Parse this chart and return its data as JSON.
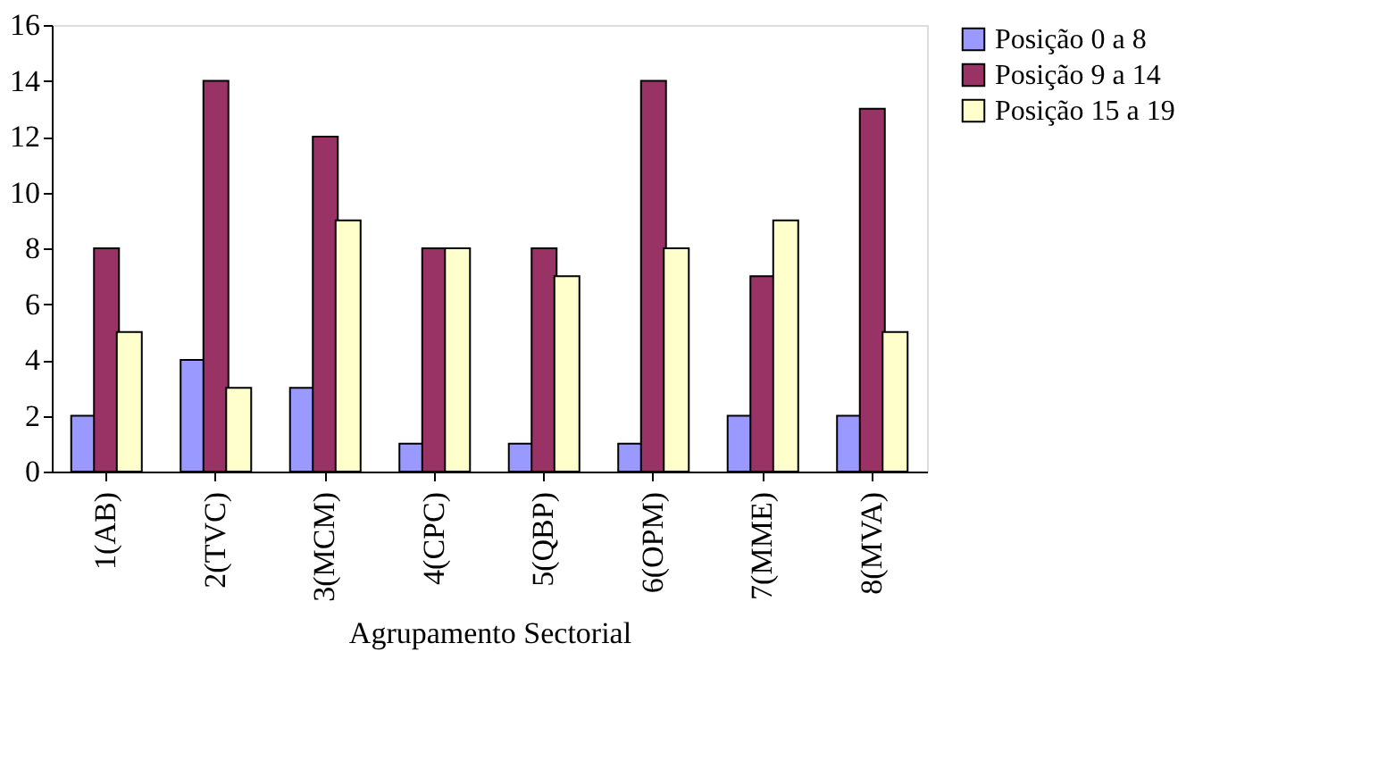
{
  "chart_data": {
    "type": "bar",
    "xlabel": "Agrupamento Sectorial",
    "categories": [
      "1(AB)",
      "2(TVC)",
      "3(MCM)",
      "4(CPC)",
      "5(QBP)",
      "6(OPM)",
      "7(MME)",
      "8(MVA)"
    ],
    "series": [
      {
        "name": "Posição 0 a 8",
        "color": "#9999ff",
        "values": [
          2,
          4,
          3,
          1,
          1,
          1,
          2,
          2
        ]
      },
      {
        "name": "Posição 9 a 14",
        "color": "#993366",
        "values": [
          8,
          14,
          12,
          8,
          8,
          14,
          7,
          13
        ]
      },
      {
        "name": "Posição 15 a 19",
        "color": "#ffffcc",
        "values": [
          5,
          3,
          9,
          8,
          7,
          8,
          9,
          5
        ]
      }
    ],
    "ylim": [
      0,
      16
    ],
    "yticks": [
      0,
      2,
      4,
      6,
      8,
      10,
      12,
      14,
      16
    ],
    "grid": false,
    "legend": "right"
  }
}
